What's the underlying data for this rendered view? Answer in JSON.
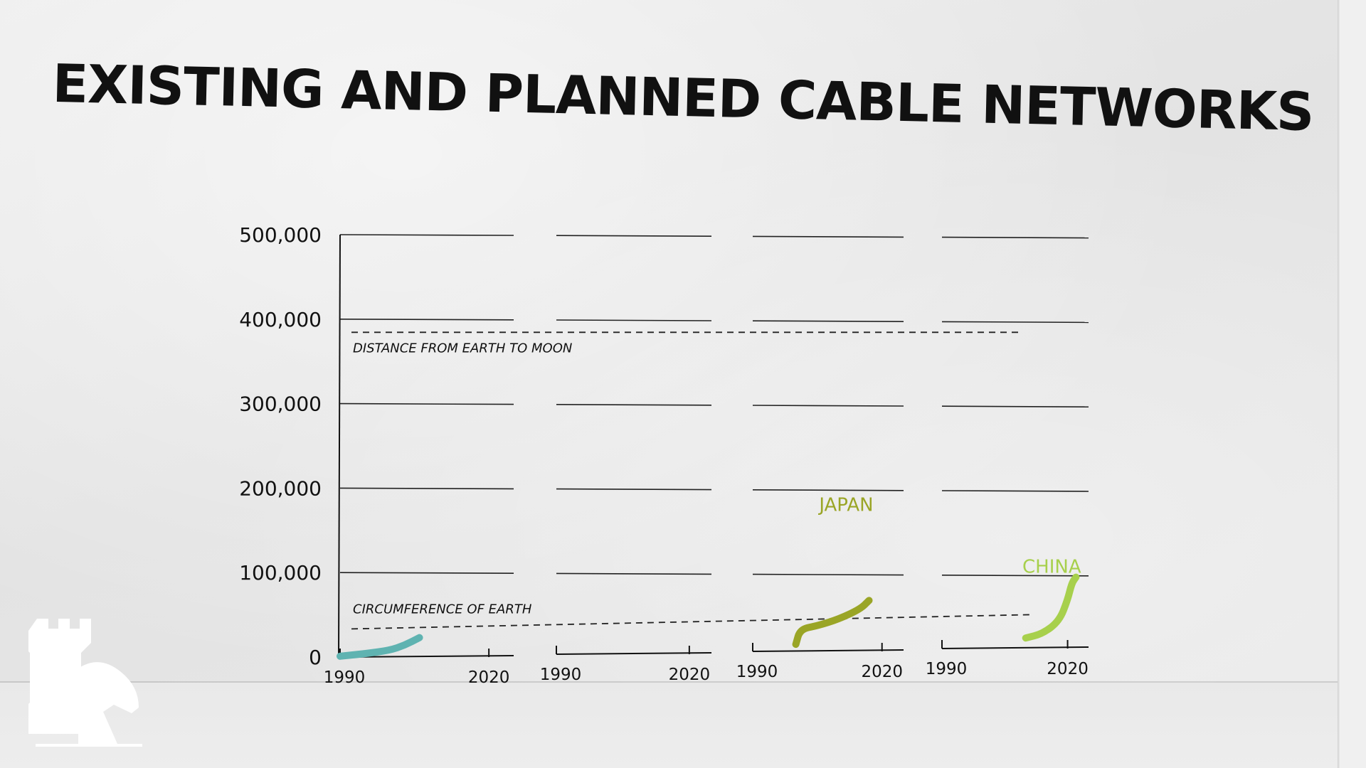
{
  "title": "EXISTING AND PLANNED CABLE NETWORKS",
  "chart_data": {
    "type": "line",
    "ylim": [
      0,
      500000
    ],
    "yticks": [
      "500,000",
      "400,000",
      "300,000",
      "200,000",
      "100,000",
      "0"
    ],
    "ytick_values": [
      500000,
      400000,
      300000,
      200000,
      100000,
      0
    ],
    "xlim": [
      1990,
      2025
    ],
    "reference_lines": [
      {
        "label": "DISTANCE FROM EARTH TO MOON",
        "value": 384400
      },
      {
        "label": "CIRCUMFERENCE OF EARTH",
        "value": 40075
      }
    ],
    "panels": [
      {
        "xticks": [
          "1990",
          "2020"
        ],
        "series": [
          {
            "name": "",
            "color": "#5fb3b1",
            "x": [
              1990,
              1995,
              2000,
              2003,
              2006
            ],
            "y": [
              1000,
              4000,
              8000,
              14000,
              23000
            ]
          }
        ]
      },
      {
        "xticks": [
          "1990",
          "2020"
        ],
        "series": []
      },
      {
        "xticks": [
          "1990",
          "2020"
        ],
        "series": [
          {
            "name": "JAPAN",
            "color": "#9aa526",
            "x": [
              2000,
              2001,
              2005,
              2010,
              2015,
              2017
            ],
            "y": [
              10000,
              28000,
              32000,
              40000,
              52000,
              62000
            ]
          }
        ]
      },
      {
        "xticks": [
          "1990",
          "2020"
        ],
        "series": [
          {
            "name": "CHINA",
            "color": "#a7d04c",
            "x": [
              2010,
              2014,
              2018,
              2020,
              2021,
              2022
            ],
            "y": [
              15000,
              20000,
              35000,
              60000,
              80000,
              87000
            ]
          }
        ]
      }
    ]
  }
}
